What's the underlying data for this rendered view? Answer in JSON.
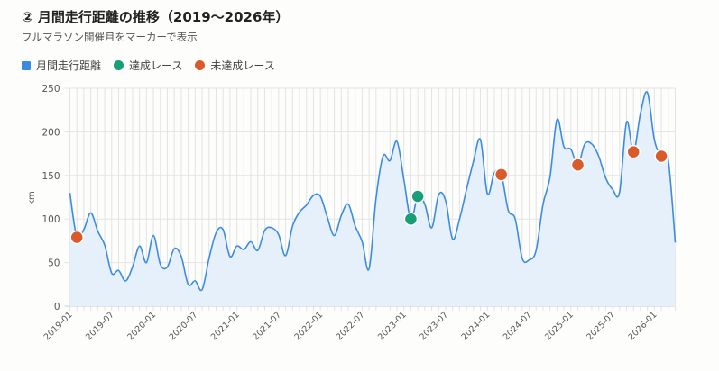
{
  "header": {
    "title": "② 月間走行距離の推移（2019〜2026年）",
    "subtitle": "フルマラソン開催月をマーカーで表示"
  },
  "chart_data": {
    "type": "line",
    "title": "② 月間走行距離の推移（2019〜2026年）",
    "subtitle": "フルマラソン開催月をマーカーで表示",
    "xlabel": "",
    "ylabel": "km",
    "ylim": [
      0,
      250
    ],
    "yticks": [
      0,
      50,
      100,
      150,
      200,
      250
    ],
    "grid": true,
    "legend_position": "top-left",
    "legend": [
      {
        "label": "月間走行距離",
        "color": "#3b8ce0",
        "shape": "square"
      },
      {
        "label": "達成レース",
        "color": "#1a9e77",
        "shape": "circle"
      },
      {
        "label": "未達成レース",
        "color": "#d95a2b",
        "shape": "circle"
      }
    ],
    "xtick_labels": [
      "2019-01",
      "2019-07",
      "2020-01",
      "2020-07",
      "2021-01",
      "2021-07",
      "2022-01",
      "2022-07",
      "2023-01",
      "2023-07",
      "2024-01",
      "2024-07",
      "2025-01",
      "2025-07",
      "2026-01"
    ],
    "start_month": "2019-01",
    "series": [
      {
        "name": "月間走行距離",
        "color": "#3b8ce0",
        "fill": "#e6f0fa",
        "values": [
          130,
          79,
          88,
          107,
          86,
          70,
          38,
          41,
          29,
          45,
          69,
          50,
          81,
          48,
          45,
          66,
          57,
          25,
          29,
          19,
          55,
          84,
          88,
          57,
          69,
          65,
          74,
          64,
          87,
          90,
          82,
          58,
          92,
          108,
          116,
          127,
          126,
          102,
          81,
          104,
          117,
          92,
          74,
          43,
          124,
          172,
          167,
          189,
          145,
          100,
          126,
          117,
          90,
          128,
          121,
          77,
          100,
          134,
          166,
          191,
          129,
          153,
          151,
          110,
          100,
          55,
          53,
          64,
          117,
          148,
          214,
          183,
          180,
          162,
          186,
          186,
          172,
          147,
          134,
          131,
          211,
          177,
          221,
          245,
          191,
          172,
          167,
          73
        ]
      }
    ],
    "markers": {
      "achieved": {
        "label": "達成レース",
        "color": "#1a9e77",
        "months": [
          "2023-02",
          "2023-03"
        ]
      },
      "not_achieved": {
        "label": "未達成レース",
        "color": "#d95a2b",
        "months": [
          "2019-02",
          "2024-03",
          "2025-02",
          "2025-10",
          "2026-02"
        ]
      }
    }
  }
}
